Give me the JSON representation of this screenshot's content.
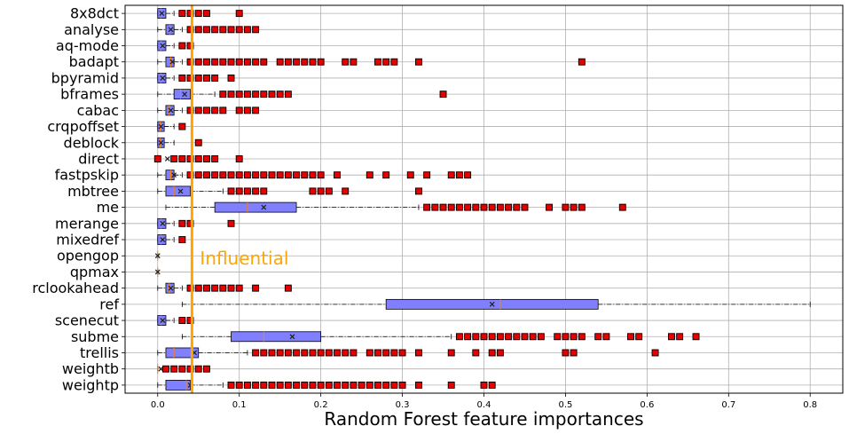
{
  "chart_data": {
    "type": "boxplot",
    "orientation": "horizontal",
    "xlabel": "Random Forest feature importances",
    "xlim": [
      -0.04,
      0.84
    ],
    "xticks": [
      "0.0",
      "0.1",
      "0.2",
      "0.3",
      "0.4",
      "0.5",
      "0.6",
      "0.7",
      "0.8"
    ],
    "xtick_values": [
      0,
      0.1,
      0.2,
      0.3,
      0.4,
      0.5,
      0.6,
      0.7,
      0.8
    ],
    "grid": true,
    "threshold": {
      "value": 0.042,
      "label": "Influential",
      "color": "#FFA500"
    },
    "colors": {
      "box": "#8080FF",
      "outlier": "#E60000",
      "median": "#FF8000"
    },
    "categories": [
      "8x8dct",
      "analyse",
      "aq-mode",
      "badapt",
      "bpyramid",
      "bframes",
      "cabac",
      "crqpoffset",
      "deblock",
      "direct",
      "fastpskip",
      "mbtree",
      "me",
      "merange",
      "mixedref",
      "opengop",
      "qpmax",
      "rclookahead",
      "ref",
      "scenecut",
      "subme",
      "trellis",
      "weightb",
      "weightp"
    ],
    "boxes": [
      {
        "name": "8x8dct",
        "q1": 0.0,
        "med": 0.004,
        "q3": 0.01,
        "mean": 0.005,
        "wlo": 0.0,
        "whi": 0.02,
        "outliers": [
          0.03,
          0.04,
          0.05,
          0.06,
          0.1
        ]
      },
      {
        "name": "analyse",
        "q1": 0.01,
        "med": 0.015,
        "q3": 0.02,
        "mean": 0.016,
        "wlo": 0.0,
        "whi": 0.03,
        "outliers": [
          0.04,
          0.05,
          0.06,
          0.07,
          0.08,
          0.09,
          0.1,
          0.11,
          0.12
        ]
      },
      {
        "name": "aq-mode",
        "q1": 0.0,
        "med": 0.004,
        "q3": 0.01,
        "mean": 0.006,
        "wlo": 0.0,
        "whi": 0.02,
        "outliers": [
          0.03,
          0.04
        ]
      },
      {
        "name": "badapt",
        "q1": 0.01,
        "med": 0.016,
        "q3": 0.02,
        "mean": 0.018,
        "wlo": 0.0,
        "whi": 0.03,
        "outliers": [
          0.04,
          0.05,
          0.06,
          0.07,
          0.08,
          0.09,
          0.1,
          0.11,
          0.12,
          0.13,
          0.15,
          0.16,
          0.17,
          0.18,
          0.19,
          0.2,
          0.23,
          0.24,
          0.27,
          0.28,
          0.29,
          0.32,
          0.52
        ]
      },
      {
        "name": "bpyramid",
        "q1": 0.0,
        "med": 0.004,
        "q3": 0.01,
        "mean": 0.006,
        "wlo": 0.0,
        "whi": 0.02,
        "outliers": [
          0.03,
          0.04,
          0.05,
          0.06,
          0.07,
          0.09
        ]
      },
      {
        "name": "bframes",
        "q1": 0.02,
        "med": 0.028,
        "q3": 0.04,
        "mean": 0.033,
        "wlo": 0.0,
        "whi": 0.07,
        "outliers": [
          0.08,
          0.09,
          0.1,
          0.11,
          0.12,
          0.13,
          0.14,
          0.15,
          0.16,
          0.35
        ]
      },
      {
        "name": "cabac",
        "q1": 0.01,
        "med": 0.014,
        "q3": 0.02,
        "mean": 0.016,
        "wlo": 0.0,
        "whi": 0.03,
        "outliers": [
          0.04,
          0.05,
          0.06,
          0.07,
          0.08,
          0.1,
          0.11,
          0.12
        ]
      },
      {
        "name": "crqpoffset",
        "q1": 0.0,
        "med": 0.003,
        "q3": 0.008,
        "mean": 0.004,
        "wlo": 0.0,
        "whi": 0.02,
        "outliers": [
          0.03
        ]
      },
      {
        "name": "deblock",
        "q1": 0.0,
        "med": 0.003,
        "q3": 0.008,
        "mean": 0.004,
        "wlo": 0.0,
        "whi": 0.02,
        "outliers": [
          0.05
        ]
      },
      {
        "name": "direct",
        "q1": 0.0,
        "med": 0.0,
        "q3": 0.0,
        "mean": 0.012,
        "wlo": 0.0,
        "whi": 0.0,
        "outliers": [
          0.0,
          0.02,
          0.03,
          0.04,
          0.05,
          0.06,
          0.07,
          0.1
        ]
      },
      {
        "name": "fastpskip",
        "q1": 0.01,
        "med": 0.016,
        "q3": 0.02,
        "mean": 0.02,
        "wlo": 0.0,
        "whi": 0.03,
        "outliers": [
          0.04,
          0.05,
          0.06,
          0.07,
          0.08,
          0.09,
          0.1,
          0.11,
          0.12,
          0.13,
          0.14,
          0.15,
          0.16,
          0.17,
          0.18,
          0.19,
          0.2,
          0.22,
          0.26,
          0.28,
          0.31,
          0.33,
          0.36,
          0.37,
          0.38
        ]
      },
      {
        "name": "mbtree",
        "q1": 0.01,
        "med": 0.02,
        "q3": 0.04,
        "mean": 0.028,
        "wlo": 0.0,
        "whi": 0.08,
        "outliers": [
          0.09,
          0.1,
          0.11,
          0.12,
          0.13,
          0.19,
          0.2,
          0.21,
          0.23,
          0.32
        ]
      },
      {
        "name": "me",
        "q1": 0.07,
        "med": 0.11,
        "q3": 0.17,
        "mean": 0.13,
        "wlo": 0.01,
        "whi": 0.32,
        "outliers": [
          0.33,
          0.34,
          0.35,
          0.36,
          0.37,
          0.38,
          0.39,
          0.4,
          0.41,
          0.42,
          0.43,
          0.44,
          0.45,
          0.48,
          0.5,
          0.51,
          0.52,
          0.57
        ]
      },
      {
        "name": "merange",
        "q1": 0.0,
        "med": 0.004,
        "q3": 0.01,
        "mean": 0.006,
        "wlo": 0.0,
        "whi": 0.02,
        "outliers": [
          0.03,
          0.04,
          0.09
        ]
      },
      {
        "name": "mixedref",
        "q1": 0.0,
        "med": 0.004,
        "q3": 0.01,
        "mean": 0.006,
        "wlo": 0.0,
        "whi": 0.02,
        "outliers": [
          0.03
        ]
      },
      {
        "name": "opengop",
        "q1": 0.0,
        "med": 0.0,
        "q3": 0.0,
        "mean": 0.0,
        "wlo": 0.0,
        "whi": 0.0,
        "outliers": []
      },
      {
        "name": "qpmax",
        "q1": 0.0,
        "med": 0.0,
        "q3": 0.0,
        "mean": 0.0,
        "wlo": 0.0,
        "whi": 0.0,
        "outliers": []
      },
      {
        "name": "rclookahead",
        "q1": 0.01,
        "med": 0.014,
        "q3": 0.02,
        "mean": 0.016,
        "wlo": 0.0,
        "whi": 0.03,
        "outliers": [
          0.04,
          0.05,
          0.06,
          0.07,
          0.08,
          0.09,
          0.1,
          0.12,
          0.16
        ]
      },
      {
        "name": "ref",
        "q1": 0.28,
        "med": 0.42,
        "q3": 0.54,
        "mean": 0.41,
        "wlo": 0.03,
        "whi": 0.8,
        "outliers": []
      },
      {
        "name": "scenecut",
        "q1": 0.0,
        "med": 0.004,
        "q3": 0.01,
        "mean": 0.006,
        "wlo": 0.0,
        "whi": 0.02,
        "outliers": [
          0.03,
          0.04
        ]
      },
      {
        "name": "subme",
        "q1": 0.09,
        "med": 0.13,
        "q3": 0.2,
        "mean": 0.165,
        "wlo": 0.03,
        "whi": 0.36,
        "outliers": [
          0.37,
          0.38,
          0.39,
          0.4,
          0.41,
          0.42,
          0.43,
          0.44,
          0.45,
          0.46,
          0.47,
          0.49,
          0.5,
          0.51,
          0.52,
          0.54,
          0.55,
          0.58,
          0.59,
          0.63,
          0.64,
          0.66
        ]
      },
      {
        "name": "trellis",
        "q1": 0.01,
        "med": 0.02,
        "q3": 0.05,
        "mean": 0.045,
        "wlo": 0.0,
        "whi": 0.11,
        "outliers": [
          0.12,
          0.13,
          0.14,
          0.15,
          0.16,
          0.17,
          0.18,
          0.19,
          0.2,
          0.21,
          0.22,
          0.23,
          0.24,
          0.26,
          0.27,
          0.28,
          0.29,
          0.3,
          0.32,
          0.36,
          0.39,
          0.41,
          0.42,
          0.5,
          0.51,
          0.61
        ]
      },
      {
        "name": "weightb",
        "q1": 0.0,
        "med": 0.0,
        "q3": 0.0,
        "mean": 0.004,
        "wlo": 0.0,
        "whi": 0.0,
        "outliers": [
          0.01,
          0.02,
          0.03,
          0.04,
          0.05,
          0.06
        ]
      },
      {
        "name": "weightp",
        "q1": 0.01,
        "med": 0.035,
        "q3": 0.04,
        "mean": 0.04,
        "wlo": 0.0,
        "whi": 0.08,
        "outliers": [
          0.09,
          0.1,
          0.11,
          0.12,
          0.13,
          0.14,
          0.15,
          0.16,
          0.17,
          0.18,
          0.19,
          0.2,
          0.21,
          0.22,
          0.23,
          0.24,
          0.25,
          0.26,
          0.27,
          0.28,
          0.29,
          0.3,
          0.32,
          0.36,
          0.4,
          0.41
        ]
      }
    ]
  }
}
